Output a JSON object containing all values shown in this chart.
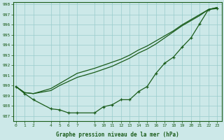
{
  "xlabel": "Graphe pression niveau de la mer (hPa)",
  "bg_color": "#cce8e8",
  "grid_color": "#99cccc",
  "line_color": "#1a5c1a",
  "marker_color": "#1a5c1a",
  "ylim": [
    986.5,
    998.2
  ],
  "yticks": [
    987,
    988,
    989,
    990,
    991,
    992,
    993,
    994,
    995,
    996,
    997,
    998
  ],
  "xticks": [
    0,
    1,
    2,
    4,
    5,
    6,
    7,
    9,
    10,
    11,
    12,
    13,
    14,
    15,
    16,
    17,
    18,
    19,
    20,
    21,
    22,
    23
  ],
  "xlim": [
    -0.3,
    23.5
  ],
  "line1_x": [
    0,
    1,
    2,
    4,
    5,
    6,
    7,
    9,
    10,
    11,
    12,
    13,
    14,
    15,
    16,
    17,
    18,
    19,
    20,
    21,
    22,
    23
  ],
  "line1_y": [
    989.9,
    989.2,
    988.6,
    987.7,
    987.6,
    987.3,
    987.3,
    987.3,
    987.9,
    988.1,
    988.6,
    988.6,
    989.4,
    989.9,
    991.2,
    992.2,
    992.8,
    993.8,
    994.7,
    996.1,
    997.5,
    997.6
  ],
  "line2_x": [
    0,
    1,
    2,
    4,
    5,
    6,
    7,
    9,
    10,
    11,
    12,
    13,
    14,
    15,
    16,
    17,
    18,
    19,
    20,
    21,
    22,
    23
  ],
  "line2_y": [
    989.9,
    989.3,
    989.2,
    989.5,
    990.0,
    990.4,
    990.8,
    991.3,
    991.6,
    991.9,
    992.3,
    992.7,
    993.2,
    993.6,
    994.1,
    994.7,
    995.3,
    995.9,
    996.4,
    996.9,
    997.5,
    997.7
  ],
  "line3_x": [
    0,
    1,
    2,
    4,
    5,
    6,
    7,
    9,
    10,
    11,
    12,
    13,
    14,
    15,
    16,
    17,
    18,
    19,
    20,
    21,
    22,
    23
  ],
  "line3_y": [
    989.9,
    989.3,
    989.2,
    989.7,
    990.2,
    990.7,
    991.2,
    991.7,
    992.0,
    992.3,
    992.6,
    993.0,
    993.5,
    993.9,
    994.4,
    994.9,
    995.4,
    996.0,
    996.5,
    997.0,
    997.5,
    997.7
  ]
}
